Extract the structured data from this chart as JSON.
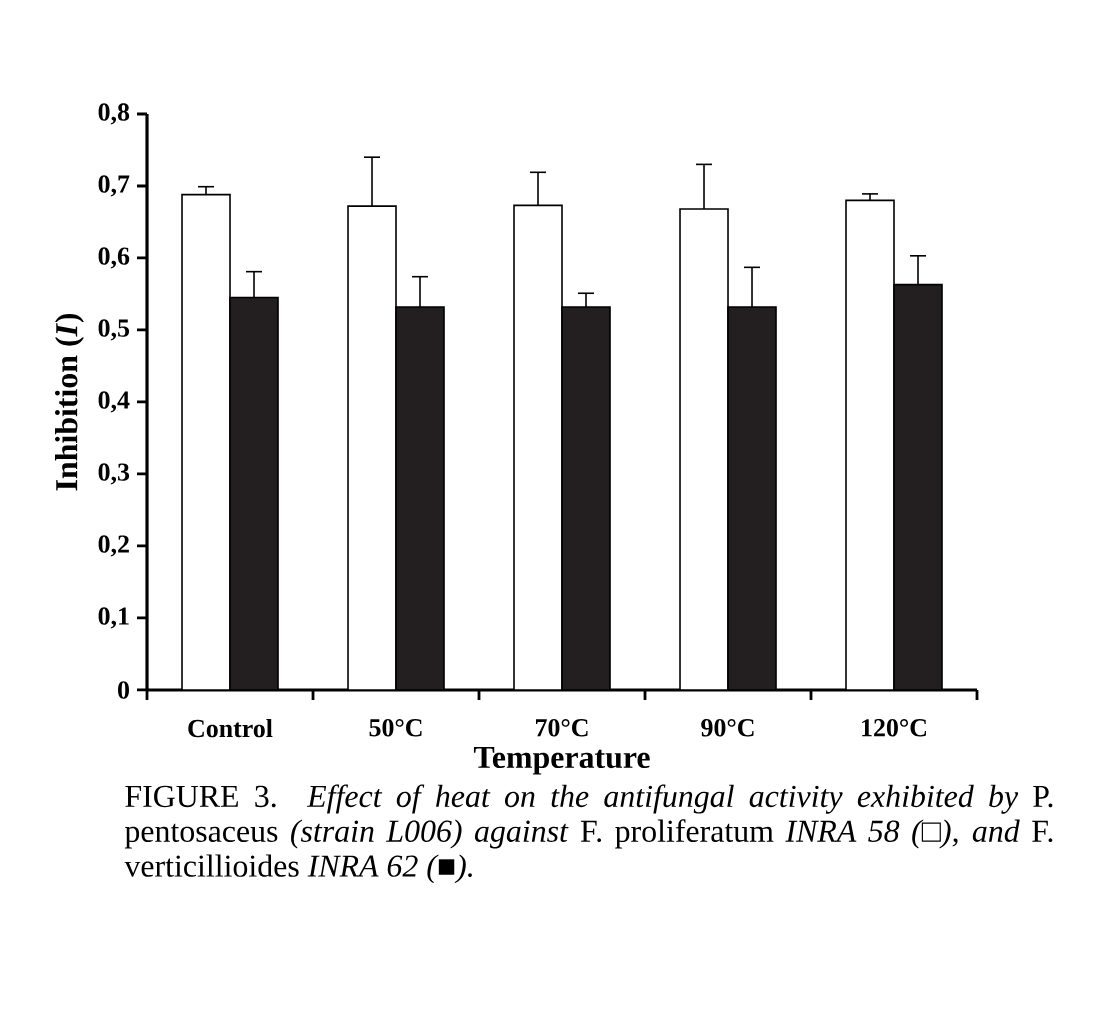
{
  "chart_data": {
    "type": "bar",
    "xlabel": "Temperature",
    "ylabel": "Inhibition (*I*)",
    "categories": [
      "Control",
      "50°C",
      "70°C",
      "90°C",
      "120°C"
    ],
    "series": [
      {
        "color": "#ffffff",
        "values": [
          0.688,
          0.672,
          0.673,
          0.668,
          0.68
        ],
        "errors": [
          [
            0.688,
            0.699
          ],
          [
            0.672,
            0.74
          ],
          [
            0.673,
            0.719
          ],
          [
            0.668,
            0.73
          ],
          [
            0.68,
            0.689
          ]
        ]
      },
      {
        "color": "#231f20",
        "values": [
          0.545,
          0.532,
          0.532,
          0.532,
          0.563
        ],
        "errors": [
          [
            0.545,
            0.581
          ],
          [
            0.532,
            0.574
          ],
          [
            0.532,
            0.551
          ],
          [
            0.532,
            0.587
          ],
          [
            0.563,
            0.603
          ]
        ]
      }
    ],
    "ylim": [
      0,
      0.8
    ],
    "yticks": [
      0,
      {
        "value": 0.1,
        "label": "0,1"
      },
      {
        "value": 0.2,
        "label": "0,2"
      },
      {
        "value": 0.3,
        "label": "0,3"
      },
      {
        "value": 0.4,
        "label": "0,4"
      },
      {
        "value": 0.5,
        "label": "0,5"
      },
      {
        "value": 0.6,
        "label": "0,6"
      },
      {
        "value": 0.7,
        "label": "0,7"
      },
      {
        "value": 0.8,
        "label": "0,8"
      }
    ],
    "annotations": [
      "FIGURE 3. *Effect of heat on the antifungal activity exhibited by* P. pentosaceus *(strain L006) against* F. proliferatum *INRA 58 (□),* *and* F. verticillioides *INRA 62 (■).*"
    ]
  }
}
